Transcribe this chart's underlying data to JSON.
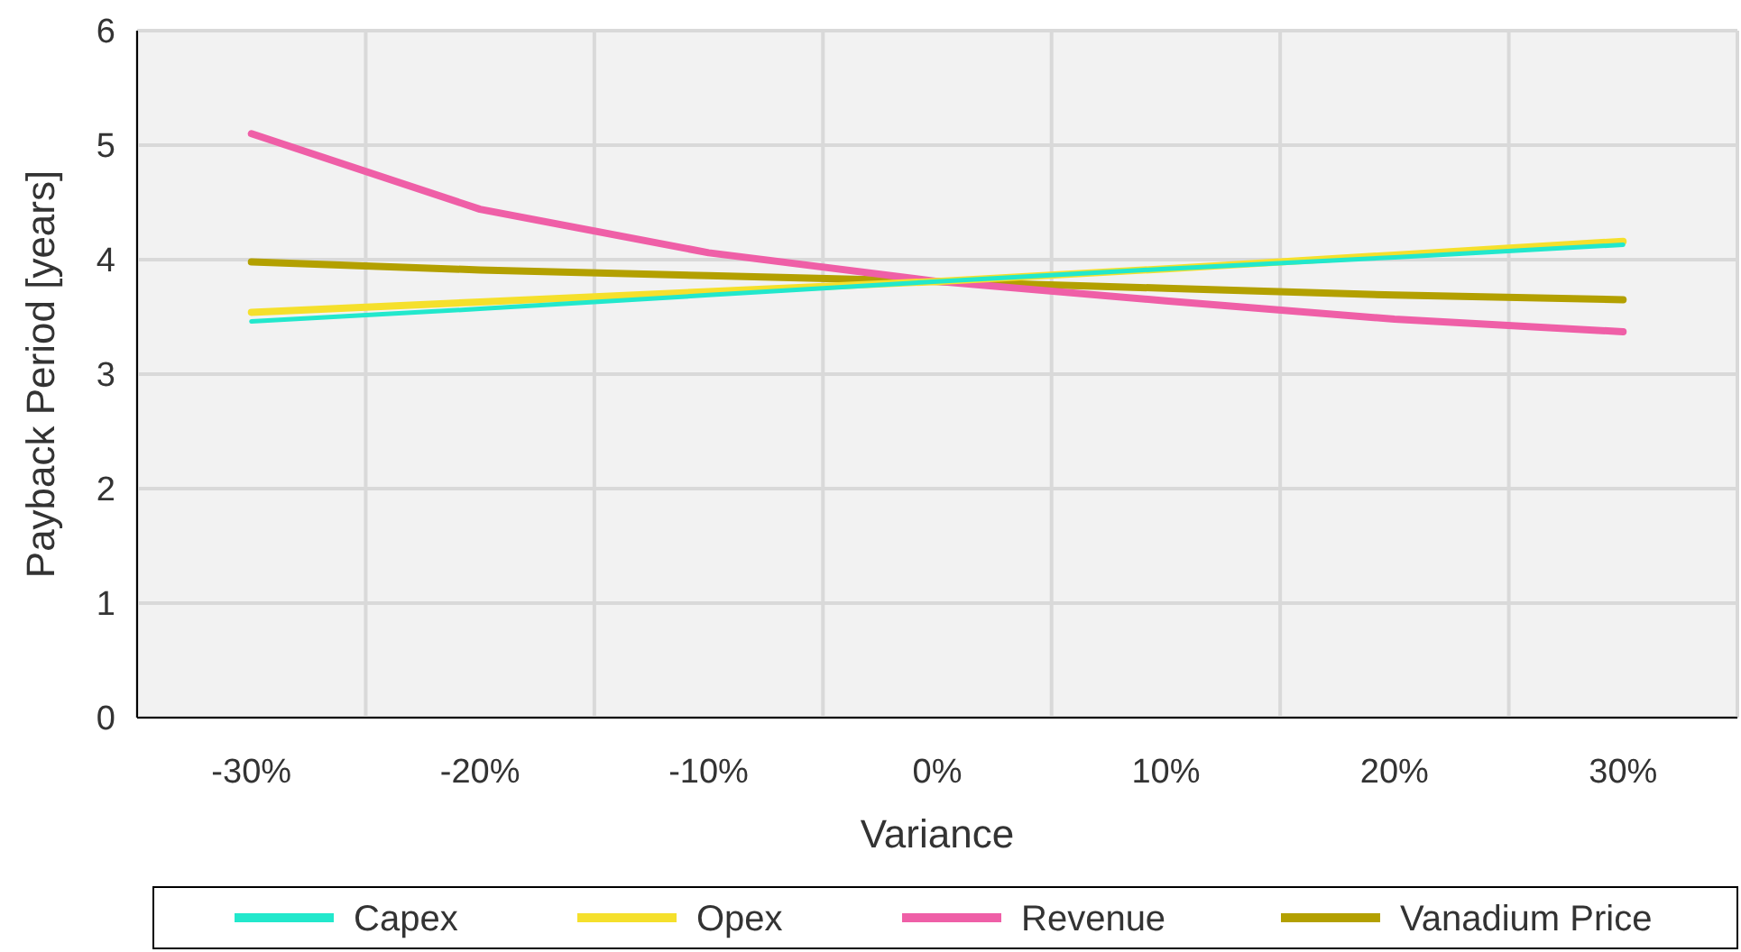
{
  "chart_data": {
    "type": "line",
    "xlabel": "Variance",
    "ylabel": "Payback Period [years]",
    "categories": [
      "-30%",
      "-20%",
      "-10%",
      "0%",
      "10%",
      "20%",
      "30%"
    ],
    "series": [
      {
        "name": "Capex",
        "color": "#22e8cc",
        "values": [
          3.46,
          3.57,
          3.69,
          3.81,
          3.92,
          4.02,
          4.13
        ]
      },
      {
        "name": "Opex",
        "color": "#f5e02c",
        "values": [
          3.54,
          3.63,
          3.72,
          3.81,
          3.92,
          4.04,
          4.16
        ]
      },
      {
        "name": "Revenue",
        "color": "#ef5fa7",
        "values": [
          5.1,
          4.44,
          4.06,
          3.81,
          3.64,
          3.48,
          3.37
        ]
      },
      {
        "name": "Vanadium Price",
        "color": "#b3a000",
        "values": [
          3.98,
          3.91,
          3.86,
          3.81,
          3.75,
          3.69,
          3.65
        ]
      }
    ],
    "ylim": [
      0,
      6
    ],
    "yticks": [
      0,
      1,
      2,
      3,
      4,
      5,
      6
    ],
    "grid": true,
    "legend": "bottom",
    "marker": "none",
    "line_style": "solid"
  }
}
